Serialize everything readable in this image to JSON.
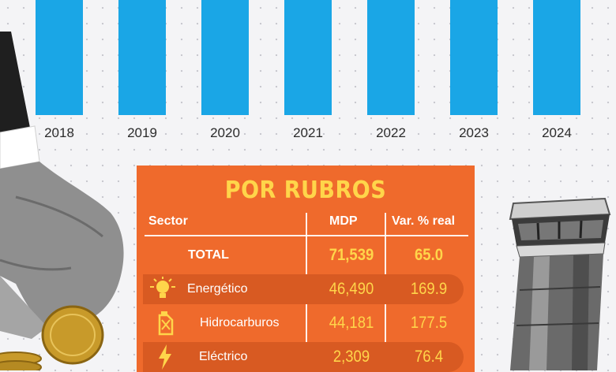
{
  "chart_data": [
    {
      "type": "bar",
      "categories": [
        "2018",
        "2019",
        "2020",
        "2021",
        "2022",
        "2023",
        "2024"
      ],
      "colors": {
        "bar": "#1aa6e6"
      }
    },
    {
      "type": "table",
      "title": "POR RUBROS",
      "columns": [
        "Sector",
        "MDP",
        "Var. % real"
      ],
      "rows": [
        {
          "sector": "TOTAL",
          "mdp": "71,539",
          "var": "65.0"
        },
        {
          "sector": "Energético",
          "mdp": "46,490",
          "var": "169.9",
          "icon": "lightbulb-icon"
        },
        {
          "sector": "Hidrocarburos",
          "mdp": "44,181",
          "var": "177.5",
          "icon": "fuel-can-icon"
        },
        {
          "sector": "Eléctrico",
          "mdp": "2,309",
          "var": "76.4",
          "icon": "lightning-icon"
        }
      ],
      "colors": {
        "panel": "#ef6a2c",
        "accent": "#ffd54a",
        "row_shade": "#d85a22"
      }
    }
  ]
}
